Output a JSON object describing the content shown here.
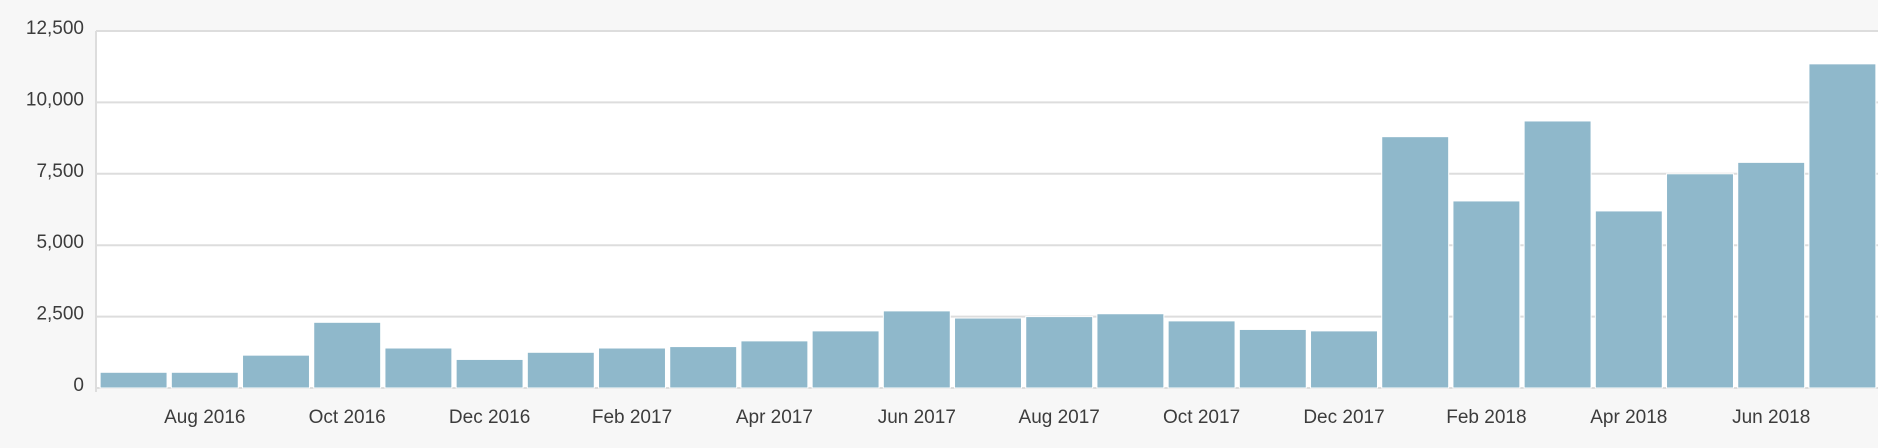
{
  "chart_data": {
    "type": "bar",
    "categories": [
      null,
      "Aug 2016",
      null,
      "Oct 2016",
      null,
      "Dec 2016",
      null,
      "Feb 2017",
      null,
      "Apr 2017",
      null,
      "Jun 2017",
      null,
      "Aug 2017",
      null,
      "Oct 2017",
      null,
      "Dec 2017",
      null,
      "Feb 2018",
      null,
      "Apr 2018",
      null,
      "Jun 2018",
      null
    ],
    "values": [
      550,
      550,
      1150,
      2300,
      1400,
      1000,
      1250,
      1400,
      1450,
      1650,
      2000,
      2700,
      2450,
      2500,
      2600,
      2350,
      2050,
      2000,
      8800,
      6550,
      9350,
      6200,
      7500,
      7900,
      11350
    ],
    "color": "#8fb8cb",
    "ylim": [
      0,
      12500
    ],
    "yticks": [
      0,
      {
        "value": 2500,
        "label": "2,500"
      },
      {
        "value": 5000,
        "label": "5,000"
      },
      {
        "value": 7500,
        "label": "7,500"
      },
      {
        "value": 10000,
        "label": "10,000"
      },
      {
        "value": 12500,
        "label": "12,500"
      }
    ],
    "grid": true
  }
}
